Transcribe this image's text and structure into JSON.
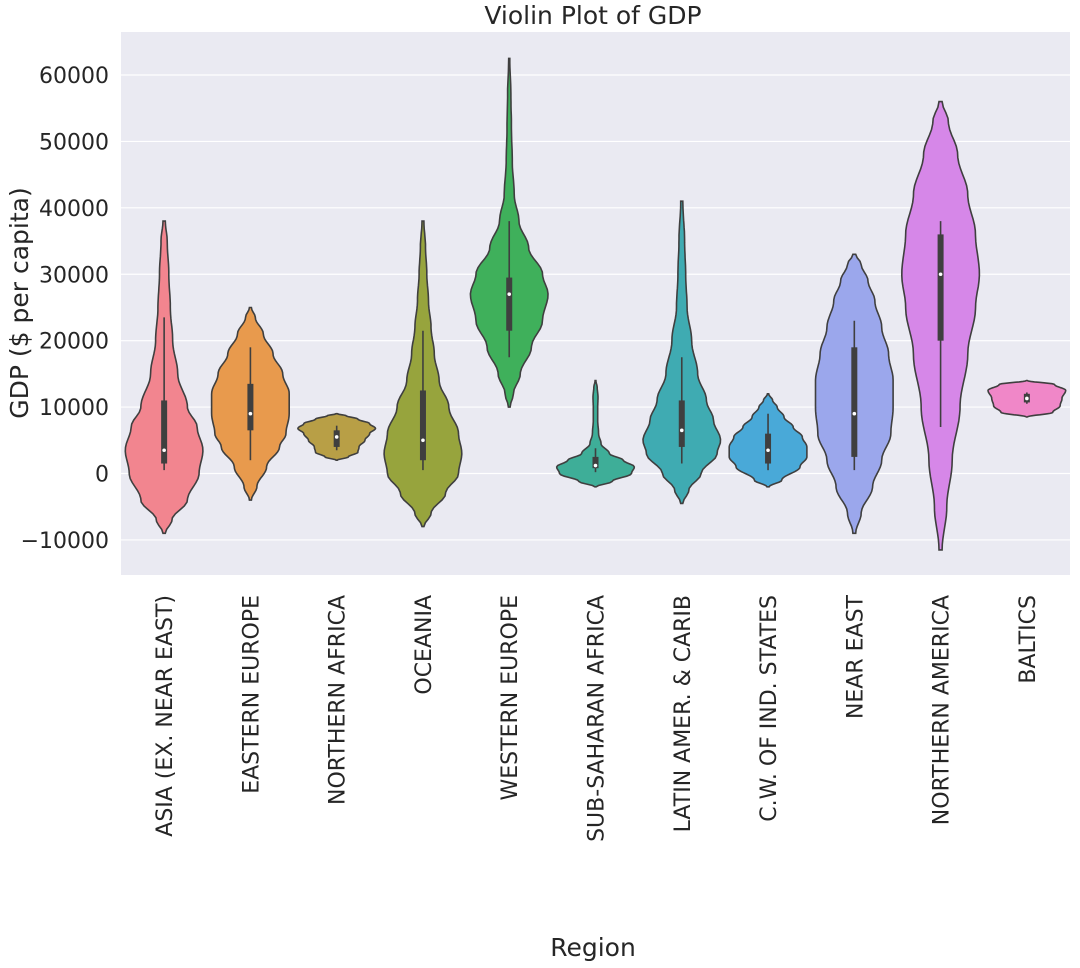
{
  "chart_data": {
    "type": "violin",
    "title": "Violin Plot of GDP",
    "xlabel": "Region",
    "ylabel": "GDP ($ per capita)",
    "ylim": [
      -15500,
      66500
    ],
    "yticks": [
      -10000,
      0,
      10000,
      20000,
      30000,
      40000,
      50000,
      60000
    ],
    "ytick_labels": [
      "−10000",
      "0",
      "10000",
      "20000",
      "30000",
      "40000",
      "50000",
      "60000"
    ],
    "grid": true,
    "categories": [
      "ASIA (EX. NEAR EAST)",
      "EASTERN EUROPE",
      "NORTHERN AFRICA",
      "OCEANIA",
      "WESTERN EUROPE",
      "SUB-SAHARAN AFRICA",
      "LATIN AMER. & CARIB",
      "C.W. OF IND. STATES",
      "NEAR EAST",
      "NORTHERN AMERICA",
      "BALTICS"
    ],
    "colors": [
      "#f2858f",
      "#e89a4d",
      "#b89f46",
      "#97a43d",
      "#3fb05b",
      "#3eae98",
      "#3fabb2",
      "#49a9d8",
      "#9ba7ec",
      "#d687e8",
      "#f087c8"
    ],
    "violins": [
      {
        "min": -9000,
        "max": 38000,
        "q1": 1500,
        "median": 3500,
        "q3": 11000,
        "whisker_low": 500,
        "whisker_high": 23500,
        "profile": [
          [
            -9000,
            0.3
          ],
          [
            -7000,
            2
          ],
          [
            -4000,
            6
          ],
          [
            0,
            9
          ],
          [
            3500,
            10
          ],
          [
            7000,
            8.5
          ],
          [
            10000,
            6
          ],
          [
            15000,
            3.5
          ],
          [
            20000,
            2.2
          ],
          [
            25000,
            1.6
          ],
          [
            30000,
            1.2
          ],
          [
            35000,
            0.8
          ],
          [
            38000,
            0.3
          ]
        ]
      },
      {
        "min": -4000,
        "max": 25000,
        "q1": 6500,
        "median": 9000,
        "q3": 13500,
        "whisker_low": 2000,
        "whisker_high": 19000,
        "profile": [
          [
            -4000,
            0.3
          ],
          [
            -2000,
            2
          ],
          [
            1000,
            5
          ],
          [
            4000,
            9
          ],
          [
            6000,
            11
          ],
          [
            9000,
            12
          ],
          [
            12000,
            12
          ],
          [
            15000,
            10
          ],
          [
            18000,
            7
          ],
          [
            21000,
            4
          ],
          [
            23500,
            1.5
          ],
          [
            25000,
            0.3
          ]
        ]
      },
      {
        "min": 2000,
        "max": 9000,
        "q1": 4000,
        "median": 5500,
        "q3": 6500,
        "whisker_low": 3500,
        "whisker_high": 7200,
        "profile": [
          [
            2000,
            0.5
          ],
          [
            2500,
            10
          ],
          [
            3200,
            18
          ],
          [
            4000,
            19
          ],
          [
            5000,
            24
          ],
          [
            6000,
            28
          ],
          [
            6800,
            33
          ],
          [
            7500,
            28
          ],
          [
            8200,
            18
          ],
          [
            8700,
            8
          ],
          [
            9000,
            0.5
          ]
        ]
      },
      {
        "min": -8000,
        "max": 38000,
        "q1": 2000,
        "median": 5000,
        "q3": 12500,
        "whisker_low": 500,
        "whisker_high": 21500,
        "profile": [
          [
            -8000,
            0.3
          ],
          [
            -6000,
            2.5
          ],
          [
            -3000,
            7
          ],
          [
            0,
            11
          ],
          [
            3000,
            12
          ],
          [
            6000,
            11
          ],
          [
            10000,
            8
          ],
          [
            14000,
            5
          ],
          [
            18000,
            3.5
          ],
          [
            22000,
            2.5
          ],
          [
            26000,
            1.7
          ],
          [
            30000,
            1.2
          ],
          [
            34000,
            0.8
          ],
          [
            38000,
            0.3
          ]
        ]
      },
      {
        "min": 10000,
        "max": 62500,
        "q1": 21500,
        "median": 27000,
        "q3": 29500,
        "whisker_low": 17500,
        "whisker_high": 38000,
        "profile": [
          [
            10000,
            0.3
          ],
          [
            12000,
            1.5
          ],
          [
            15000,
            4
          ],
          [
            19000,
            8
          ],
          [
            23000,
            12
          ],
          [
            27000,
            14
          ],
          [
            30000,
            12
          ],
          [
            34000,
            7
          ],
          [
            38000,
            3.5
          ],
          [
            42000,
            1.8
          ],
          [
            47000,
            1.1
          ],
          [
            52000,
            0.8
          ],
          [
            57000,
            0.6
          ],
          [
            62500,
            0.2
          ]
        ]
      },
      {
        "min": -2000,
        "max": 14000,
        "q1": 800,
        "median": 1200,
        "q3": 2500,
        "whisker_low": 200,
        "whisker_high": 3800,
        "profile": [
          [
            -2000,
            0.5
          ],
          [
            -1200,
            12
          ],
          [
            0,
            26
          ],
          [
            1000,
            28
          ],
          [
            2000,
            20
          ],
          [
            3000,
            10
          ],
          [
            4500,
            4
          ],
          [
            6000,
            2.2
          ],
          [
            8000,
            1.6
          ],
          [
            10000,
            1.6
          ],
          [
            11500,
            1.8
          ],
          [
            13000,
            1.2
          ],
          [
            14000,
            0.3
          ]
        ]
      },
      {
        "min": -4500,
        "max": 41000,
        "q1": 4000,
        "median": 6500,
        "q3": 11000,
        "whisker_low": 1500,
        "whisker_high": 17500,
        "profile": [
          [
            -4500,
            0.3
          ],
          [
            -2500,
            2
          ],
          [
            0,
            5.5
          ],
          [
            3000,
            10
          ],
          [
            5000,
            11
          ],
          [
            8000,
            9
          ],
          [
            11000,
            7
          ],
          [
            15000,
            4.5
          ],
          [
            20000,
            2.8
          ],
          [
            25000,
            1.5
          ],
          [
            30000,
            1.1
          ],
          [
            35000,
            0.8
          ],
          [
            41000,
            0.3
          ]
        ]
      },
      {
        "min": -2000,
        "max": 12000,
        "q1": 1500,
        "median": 3500,
        "q3": 6000,
        "whisker_low": 500,
        "whisker_high": 9000,
        "profile": [
          [
            -2000,
            0.5
          ],
          [
            -1000,
            6
          ],
          [
            1000,
            14
          ],
          [
            2500,
            17
          ],
          [
            4000,
            17
          ],
          [
            5500,
            15
          ],
          [
            7000,
            11
          ],
          [
            8500,
            7
          ],
          [
            10000,
            4
          ],
          [
            11000,
            2
          ],
          [
            12000,
            0.3
          ]
        ]
      },
      {
        "min": -9000,
        "max": 33000,
        "q1": 2500,
        "median": 9000,
        "q3": 19000,
        "whisker_low": 500,
        "whisker_high": 23000,
        "profile": [
          [
            -9000,
            0.3
          ],
          [
            -6000,
            1.5
          ],
          [
            -2000,
            4
          ],
          [
            2000,
            6
          ],
          [
            6000,
            8
          ],
          [
            10000,
            8.5
          ],
          [
            14000,
            8.5
          ],
          [
            18000,
            7.5
          ],
          [
            22000,
            6
          ],
          [
            26000,
            4.5
          ],
          [
            29000,
            3
          ],
          [
            31500,
            1.5
          ],
          [
            33000,
            0.3
          ]
        ]
      },
      {
        "min": -11500,
        "max": 56000,
        "q1": 20000,
        "median": 30000,
        "q3": 36000,
        "whisker_low": 7000,
        "whisker_high": 38000,
        "profile": [
          [
            -11500,
            0.2
          ],
          [
            -5000,
            0.8
          ],
          [
            2000,
            1.5
          ],
          [
            10000,
            2.5
          ],
          [
            18000,
            3.5
          ],
          [
            25000,
            4.5
          ],
          [
            30000,
            5
          ],
          [
            36000,
            4.5
          ],
          [
            42000,
            3.5
          ],
          [
            48000,
            2.2
          ],
          [
            53000,
            1
          ],
          [
            56000,
            0.2
          ]
        ]
      },
      {
        "min": 8500,
        "max": 14000,
        "q1": 10700,
        "median": 11300,
        "q3": 12000,
        "whisker_low": 10500,
        "whisker_high": 12200,
        "profile": [
          [
            8500,
            0.5
          ],
          [
            9200,
            28
          ],
          [
            10200,
            36
          ],
          [
            11300,
            38
          ],
          [
            12500,
            42
          ],
          [
            13400,
            30
          ],
          [
            14000,
            0.5
          ]
        ]
      }
    ]
  }
}
